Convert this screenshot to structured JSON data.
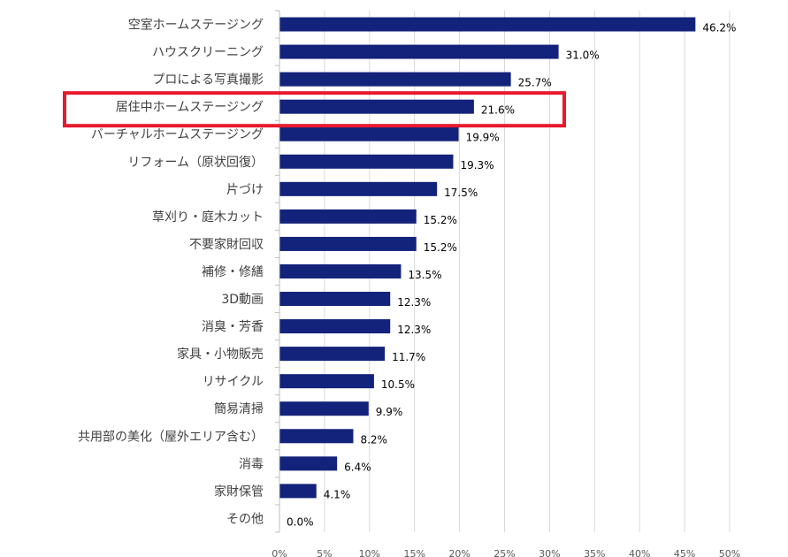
{
  "chart_data": {
    "type": "bar",
    "orientation": "horizontal",
    "categories": [
      "空室ホームステージング",
      "ハウスクリーニング",
      "プロによる写真撮影",
      "居住中ホームステージング",
      "バーチャルホームステージング",
      "リフォーム（原状回復）",
      "片づけ",
      "草刈り・庭木カット",
      "不要家財回収",
      "補修・修繕",
      "3D動画",
      "消臭・芳香",
      "家具・小物販売",
      "リサイクル",
      "簡易清掃",
      "共用部の美化（屋外エリア含む）",
      "消毒",
      "家財保管",
      "その他"
    ],
    "values": [
      46.2,
      31.0,
      25.7,
      21.6,
      19.9,
      19.3,
      17.5,
      15.2,
      15.2,
      13.5,
      12.3,
      12.3,
      11.7,
      10.5,
      9.9,
      8.2,
      6.4,
      4.1,
      0.0
    ],
    "value_labels": [
      "46.2%",
      "31.0%",
      "25.7%",
      "21.6%",
      "19.9%",
      "19.3%",
      "17.5%",
      "15.2%",
      "15.2%",
      "13.5%",
      "12.3%",
      "12.3%",
      "11.7%",
      "10.5%",
      "9.9%",
      "8.2%",
      "6.4%",
      "4.1%",
      "0.0%"
    ],
    "x_ticks": [
      0,
      5,
      10,
      15,
      20,
      25,
      30,
      35,
      40,
      45,
      50
    ],
    "x_tick_labels": [
      "0%",
      "5%",
      "10%",
      "15%",
      "20%",
      "25%",
      "30%",
      "35%",
      "40%",
      "45%",
      "50%"
    ],
    "xlim": [
      0,
      50
    ],
    "grid": "vertical",
    "highlighted_category": "居住中ホームステージング",
    "title": "",
    "xlabel": "",
    "ylabel": ""
  },
  "colors": {
    "bar": "#13227a",
    "highlight_box": "#e8192c"
  }
}
